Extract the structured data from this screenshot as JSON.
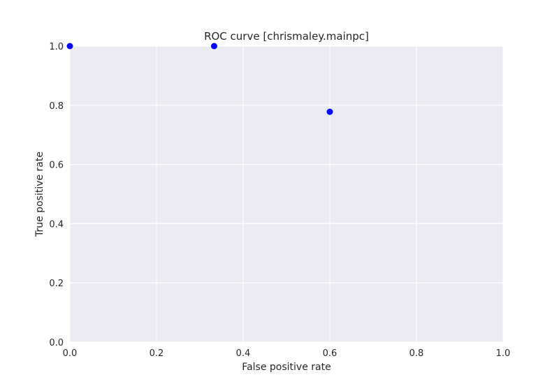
{
  "chart_data": {
    "type": "scatter",
    "title": "ROC curve [chrismaley.mainpc]",
    "xlabel": "False positive rate",
    "ylabel": "True positive rate",
    "xlim": [
      0.0,
      1.0
    ],
    "ylim": [
      0.0,
      1.0
    ],
    "xticks": [
      "0.0",
      "0.2",
      "0.4",
      "0.6",
      "0.8",
      "1.0"
    ],
    "yticks": [
      "0.0",
      "0.2",
      "0.4",
      "0.6",
      "0.8",
      "1.0"
    ],
    "grid": true,
    "legend": "none",
    "colors": {
      "background": "#eaeaf2",
      "grid": "#ffffff",
      "marker": "#0000ff",
      "text": "#262626"
    },
    "series": [
      {
        "x": [
          0.0,
          0.333,
          0.6
        ],
        "y": [
          1.0,
          1.0,
          0.778
        ]
      }
    ]
  }
}
